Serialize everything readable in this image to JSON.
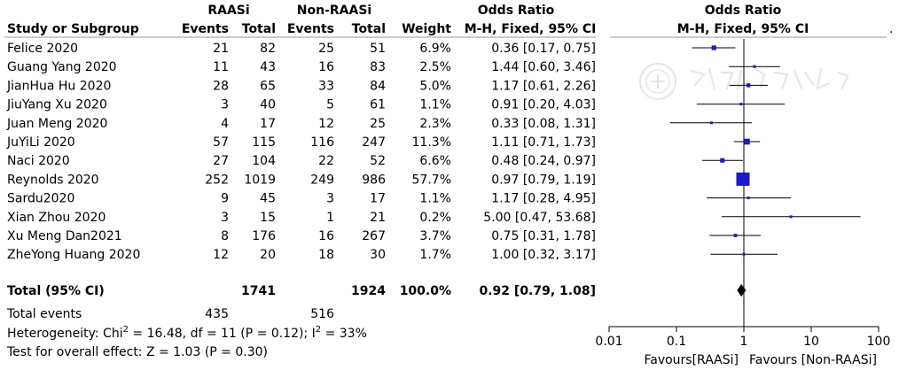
{
  "chart_data": {
    "type": "forest",
    "header": {
      "group1": "RAASi",
      "group2": "Non-RAASi",
      "study_col": "Study or Subgroup",
      "events": "Events",
      "total": "Total",
      "weight": "Weight",
      "or_title": "Odds Ratio",
      "or_method": "M-H, Fixed, 95% CI",
      "plot_title": "Odds Ratio",
      "plot_method": "M-H, Fixed, 95% CI"
    },
    "studies": [
      {
        "name": "Felice 2020",
        "e1": "21",
        "n1": "82",
        "e2": "25",
        "n2": "51",
        "weight": "6.9%",
        "ci_text": "0.36 [0.17, 0.75]",
        "or": 0.36,
        "lo": 0.17,
        "hi": 0.75,
        "w": 6.9
      },
      {
        "name": "Guang Yang 2020",
        "e1": "11",
        "n1": "43",
        "e2": "16",
        "n2": "83",
        "weight": "2.5%",
        "ci_text": "1.44 [0.60, 3.46]",
        "or": 1.44,
        "lo": 0.6,
        "hi": 3.46,
        "w": 2.5
      },
      {
        "name": "JianHua Hu 2020",
        "e1": "28",
        "n1": "65",
        "e2": "33",
        "n2": "84",
        "weight": "5.0%",
        "ci_text": "1.17 [0.61, 2.26]",
        "or": 1.17,
        "lo": 0.61,
        "hi": 2.26,
        "w": 5.0
      },
      {
        "name": "JiuYang Xu 2020",
        "e1": "3",
        "n1": "40",
        "e2": "5",
        "n2": "61",
        "weight": "1.1%",
        "ci_text": "0.91 [0.20, 4.03]",
        "or": 0.91,
        "lo": 0.2,
        "hi": 4.03,
        "w": 1.1
      },
      {
        "name": "Juan Meng 2020",
        "e1": "4",
        "n1": "17",
        "e2": "12",
        "n2": "25",
        "weight": "2.3%",
        "ci_text": "0.33 [0.08, 1.31]",
        "or": 0.33,
        "lo": 0.08,
        "hi": 1.31,
        "w": 2.3
      },
      {
        "name": "JuYiLi 2020",
        "e1": "57",
        "n1": "115",
        "e2": "116",
        "n2": "247",
        "weight": "11.3%",
        "ci_text": "1.11 [0.71, 1.73]",
        "or": 1.11,
        "lo": 0.71,
        "hi": 1.73,
        "w": 11.3
      },
      {
        "name": "Naci 2020",
        "e1": "27",
        "n1": "104",
        "e2": "22",
        "n2": "52",
        "weight": "6.6%",
        "ci_text": "0.48 [0.24, 0.97]",
        "or": 0.48,
        "lo": 0.24,
        "hi": 0.97,
        "w": 6.6
      },
      {
        "name": "Reynolds 2020",
        "e1": "252",
        "n1": "1019",
        "e2": "249",
        "n2": "986",
        "weight": "57.7%",
        "ci_text": "0.97 [0.79, 1.19]",
        "or": 0.97,
        "lo": 0.79,
        "hi": 1.19,
        "w": 57.7
      },
      {
        "name": "Sardu2020",
        "e1": "9",
        "n1": "45",
        "e2": "3",
        "n2": "17",
        "weight": "1.1%",
        "ci_text": "1.17 [0.28, 4.95]",
        "or": 1.17,
        "lo": 0.28,
        "hi": 4.95,
        "w": 1.1
      },
      {
        "name": "Xian Zhou 2020",
        "e1": "3",
        "n1": "15",
        "e2": "1",
        "n2": "21",
        "weight": "0.2%",
        "ci_text": "5.00 [0.47, 53.68]",
        "or": 5.0,
        "lo": 0.47,
        "hi": 53.68,
        "w": 0.2
      },
      {
        "name": "Xu Meng Dan2021",
        "e1": "8",
        "n1": "176",
        "e2": "16",
        "n2": "267",
        "weight": "3.7%",
        "ci_text": "0.75 [0.31, 1.78]",
        "or": 0.75,
        "lo": 0.31,
        "hi": 1.78,
        "w": 3.7
      },
      {
        "name": "ZheYong Huang 2020",
        "e1": "12",
        "n1": "20",
        "e2": "18",
        "n2": "30",
        "weight": "1.7%",
        "ci_text": "1.00 [0.32, 3.17]",
        "or": 1.0,
        "lo": 0.32,
        "hi": 3.17,
        "w": 1.7
      }
    ],
    "total": {
      "label": "Total (95% CI)",
      "n1": "1741",
      "n2": "1924",
      "weight": "100.0%",
      "ci_text": "0.92 [0.79, 1.08]",
      "or": 0.92,
      "lo": 0.79,
      "hi": 1.08
    },
    "total_events": {
      "label": "Total events",
      "e1": "435",
      "e2": "516"
    },
    "heterogeneity": {
      "prefix": "Heterogeneity: Chi",
      "sup1": "2",
      "mid": " = 16.48, df = 11 (P = 0.12); I",
      "sup2": "2",
      "suffix": " = 33%"
    },
    "overall_effect": "Test for overall effect: Z = 1.03 (P = 0.30)",
    "axis": {
      "scale": "log",
      "ticks": [
        0.01,
        0.1,
        1,
        10,
        100
      ],
      "tick_labels": [
        "0.01",
        "0.1",
        "1",
        "10",
        "100"
      ],
      "range": [
        0.01,
        100
      ]
    },
    "favours_left": "Favours[RAASi]",
    "favours_right": "Favours [Non-RAASi]",
    "colors": {
      "marker": "#1a1acc",
      "line": "#000000",
      "divider": "#9a9a9a",
      "watermark": "#c8c8c8"
    },
    "watermark_icon": "chinese-medical-association-seal"
  }
}
